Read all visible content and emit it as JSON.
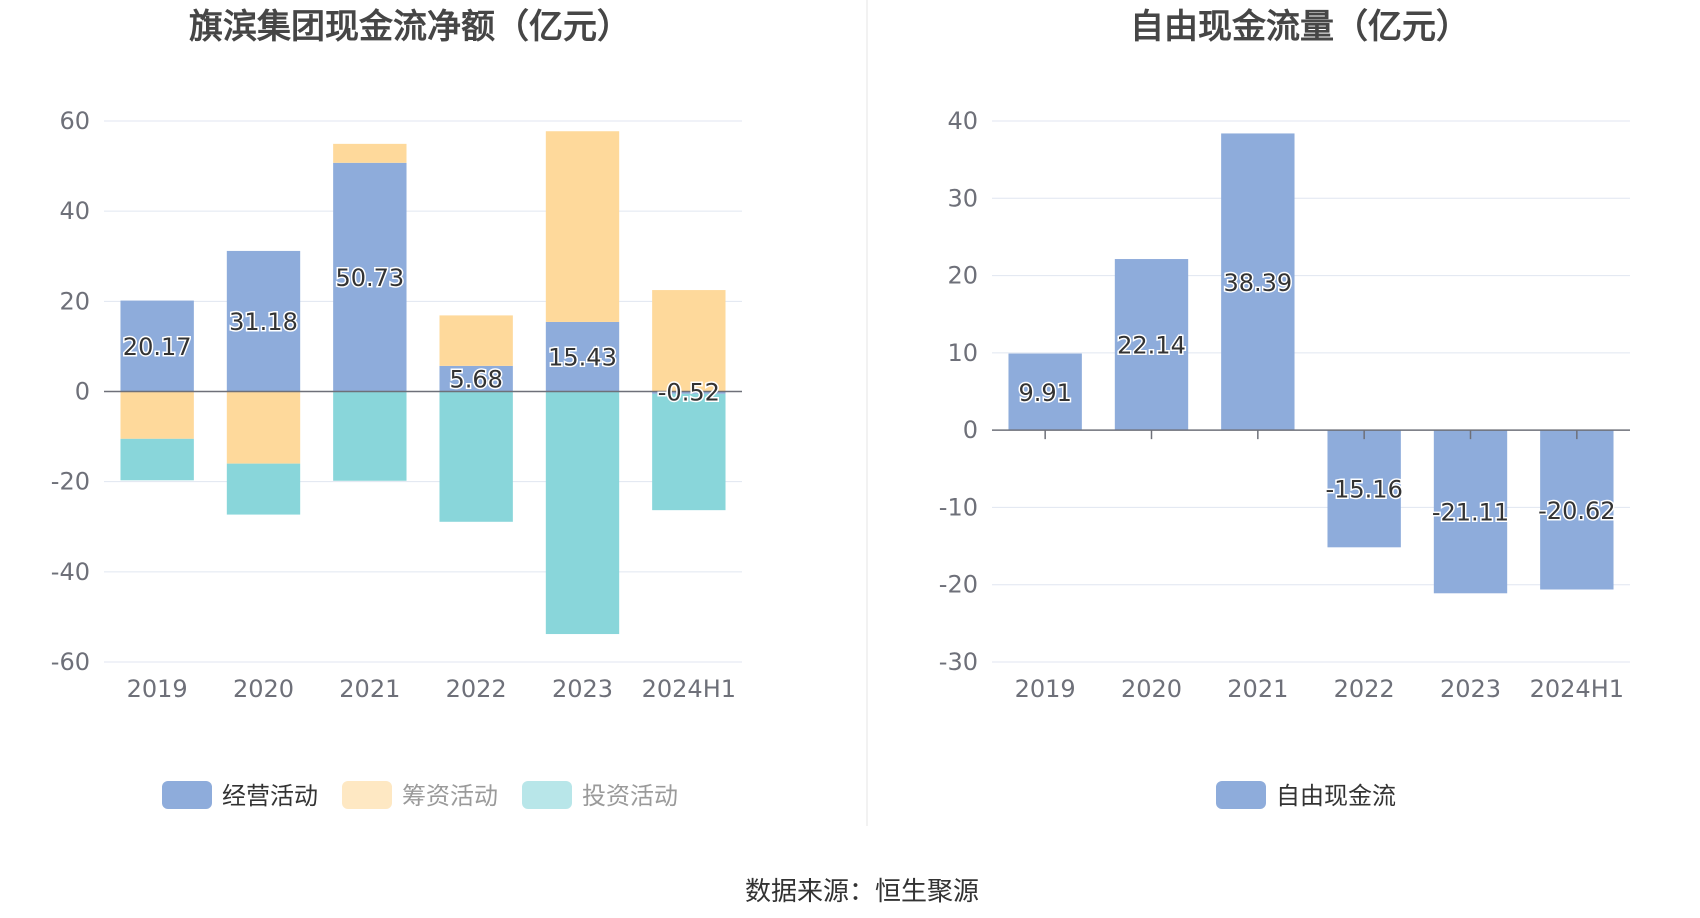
{
  "source_text": "数据来源：恒生聚源",
  "colors": {
    "operating": "#8eacdb",
    "financing": "#fed99b",
    "investing": "#89d6da",
    "fcf": "#8eacdb",
    "grid": "#e0e6f1",
    "axis": "#6e7079",
    "divider": "#e6e6e6"
  },
  "chart_data": [
    {
      "type": "bar",
      "stacked": true,
      "title": "旗滨集团现金流净额（亿元）",
      "categories": [
        "2019",
        "2020",
        "2021",
        "2022",
        "2023",
        "2024H1"
      ],
      "ylim": [
        -60,
        60
      ],
      "yticks": [
        60,
        40,
        20,
        0,
        -20,
        -40,
        -60
      ],
      "grid": true,
      "legend_position": "bottom",
      "series": [
        {
          "name": "经营活动",
          "color_key": "operating",
          "values": [
            20.17,
            31.18,
            50.73,
            5.68,
            15.43,
            -0.52
          ],
          "labels": [
            "20.17",
            "31.18",
            "50.73",
            "5.68",
            "15.43",
            "-0.52"
          ]
        },
        {
          "name": "筹资活动",
          "color_key": "financing",
          "values": [
            -10.5,
            -16,
            4.2,
            11.2,
            42.3,
            22.5
          ]
        },
        {
          "name": "投资活动",
          "color_key": "investing",
          "values": [
            -9.2,
            -11.3,
            -19.8,
            -28.9,
            -53.8,
            -25.8
          ]
        }
      ]
    },
    {
      "type": "bar",
      "title": "自由现金流量（亿元）",
      "categories": [
        "2019",
        "2020",
        "2021",
        "2022",
        "2023",
        "2024H1"
      ],
      "ylim": [
        -30,
        40
      ],
      "yticks": [
        40,
        30,
        20,
        10,
        0,
        -10,
        -20,
        -30
      ],
      "grid": true,
      "legend_position": "bottom",
      "series": [
        {
          "name": "自由现金流",
          "color_key": "fcf",
          "values": [
            9.91,
            22.14,
            38.39,
            -15.16,
            -21.11,
            -20.62
          ],
          "labels": [
            "9.91",
            "22.14",
            "38.39",
            "-15.16",
            "-21.11",
            "-20.62"
          ]
        }
      ]
    }
  ]
}
